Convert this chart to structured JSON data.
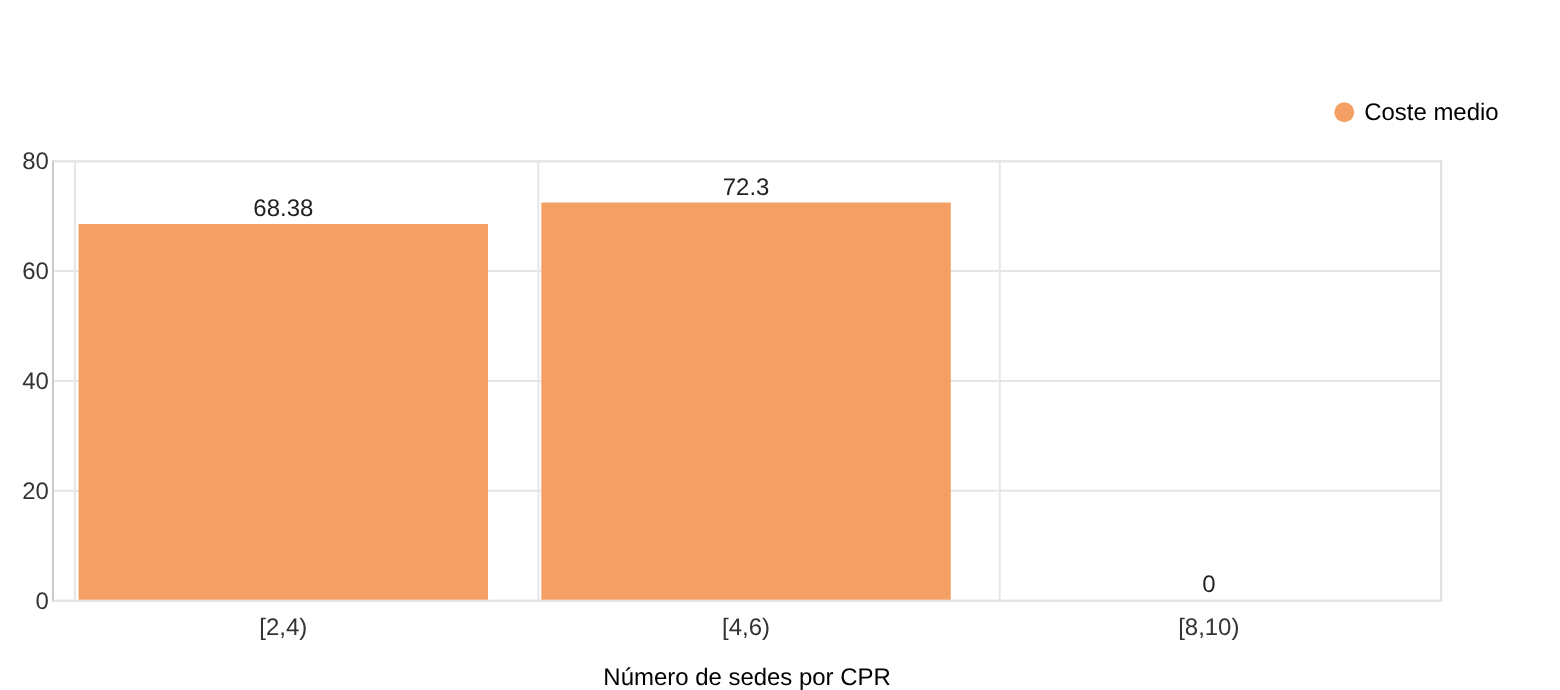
{
  "chart_data": {
    "type": "bar",
    "xlabel": "Número de sedes por CPR",
    "categories": [
      "[2,4)",
      "[4,6)",
      "[8,10)"
    ],
    "series": [
      {
        "name": "Coste medio",
        "color": "#f4a064",
        "values": [
          68.38,
          72.3,
          0
        ]
      }
    ],
    "ylim": [
      0,
      80
    ],
    "yticks": [
      0,
      20,
      40,
      60,
      80
    ],
    "grid": true,
    "legend": "top right",
    "data_labels": true
  }
}
